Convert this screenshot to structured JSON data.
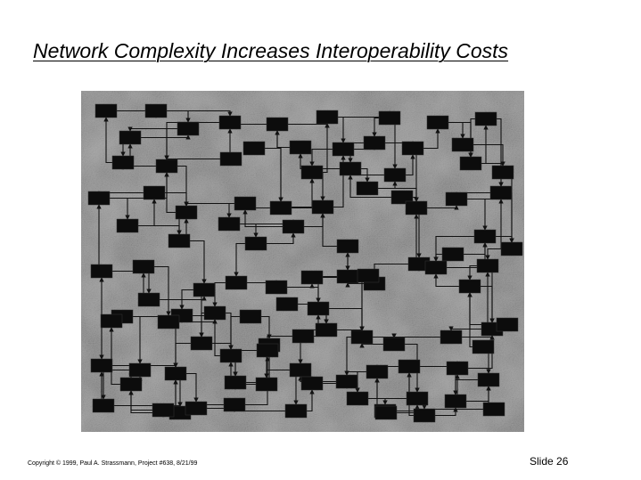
{
  "slide": {
    "title": "Network Complexity Increases Interoperability Costs",
    "copyright": "Copyright © 1999,  Paul A. Strassmann, Project #638, 8/21/99",
    "slide_number": "Slide 26"
  },
  "figure": {
    "colors": {
      "background": "#9a9a9a",
      "node_fill": "#0c0c0c",
      "link": "#111111"
    }
  }
}
